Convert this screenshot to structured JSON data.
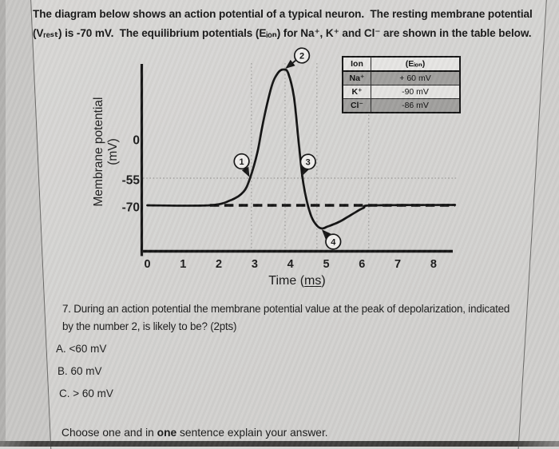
{
  "document": {
    "intro": [
      "The diagram below shows an action potential of a typical neuron.  The resting membrane potential",
      "(Vᵣₑₛₜ) is -70 mV.  The equilibrium potentials (Eᵢₒₙ) for Na⁺, K⁺ and Cl⁻ are shown in the table below."
    ],
    "question": [
      "7. During an action potential the membrane potential value at the peak of depolarization, indicated",
      "by the number 2, is likely to be? (2pts)"
    ],
    "options": [
      "A. <60 mV",
      "B. 60 mV",
      "C. > 60 mV"
    ],
    "footer": {
      "pre": "Choose one and in ",
      "bold": "one",
      "post": " sentence explain your answer."
    }
  },
  "ion_table": {
    "headers": [
      "Ion",
      "(Eᵢₒₙ)"
    ],
    "rows": [
      {
        "ion": "Na⁺",
        "value": "+ 60 mV"
      },
      {
        "ion": "K⁺",
        "value": "-90 mV"
      },
      {
        "ion": "Cl⁻",
        "value": "-86 mV"
      }
    ]
  },
  "chart_data": {
    "type": "line",
    "ylabel": "Membrane potential (mV)",
    "xlabel_pre": "Time (",
    "xlabel_ms": "ms",
    "xlabel_post": ")",
    "x_ticks": [
      0,
      1,
      2,
      3,
      4,
      5,
      6,
      7,
      8
    ],
    "y_ticks": [
      0,
      -55,
      -70
    ],
    "xlim": [
      0,
      8.6
    ],
    "resting_potential_mv": -70,
    "threshold_mv": -55,
    "peak_mv_approx": 40,
    "trough_mv_approx": -86,
    "dotted_threshold_line_mv": -55,
    "dashed_resting_line": {
      "mv": -70,
      "t_start": 1.75,
      "t_end": 8.6
    },
    "vertical_reference_lines_t": [
      2.91,
      3.85,
      4.74,
      6.19
    ],
    "curve_points": [
      [
        0,
        -70
      ],
      [
        1.73,
        -70
      ],
      [
        2.35,
        -67
      ],
      [
        2.69,
        -62.5
      ],
      [
        2.87,
        -55
      ],
      [
        3.07,
        -21
      ],
      [
        3.25,
        10.7
      ],
      [
        3.47,
        30
      ],
      [
        3.65,
        38
      ],
      [
        3.81,
        40
      ],
      [
        3.94,
        37.7
      ],
      [
        4.1,
        23.7
      ],
      [
        4.23,
        -5.5
      ],
      [
        4.34,
        -55
      ],
      [
        4.45,
        -67
      ],
      [
        4.59,
        -78
      ],
      [
        4.74,
        -84
      ],
      [
        4.88,
        -86
      ],
      [
        5.03,
        -84.8
      ],
      [
        5.37,
        -81.3
      ],
      [
        5.7,
        -76.5
      ],
      [
        6.04,
        -71.8
      ],
      [
        6.31,
        -70
      ],
      [
        8.6,
        -69.8
      ]
    ],
    "annotations": [
      {
        "label": "1",
        "t": 2.87,
        "mv": -55
      },
      {
        "label": "2",
        "t": 3.83,
        "mv": 40
      },
      {
        "label": "3",
        "t": 4.28,
        "mv": -55
      },
      {
        "label": "4",
        "t": 4.85,
        "mv": -86
      }
    ]
  }
}
